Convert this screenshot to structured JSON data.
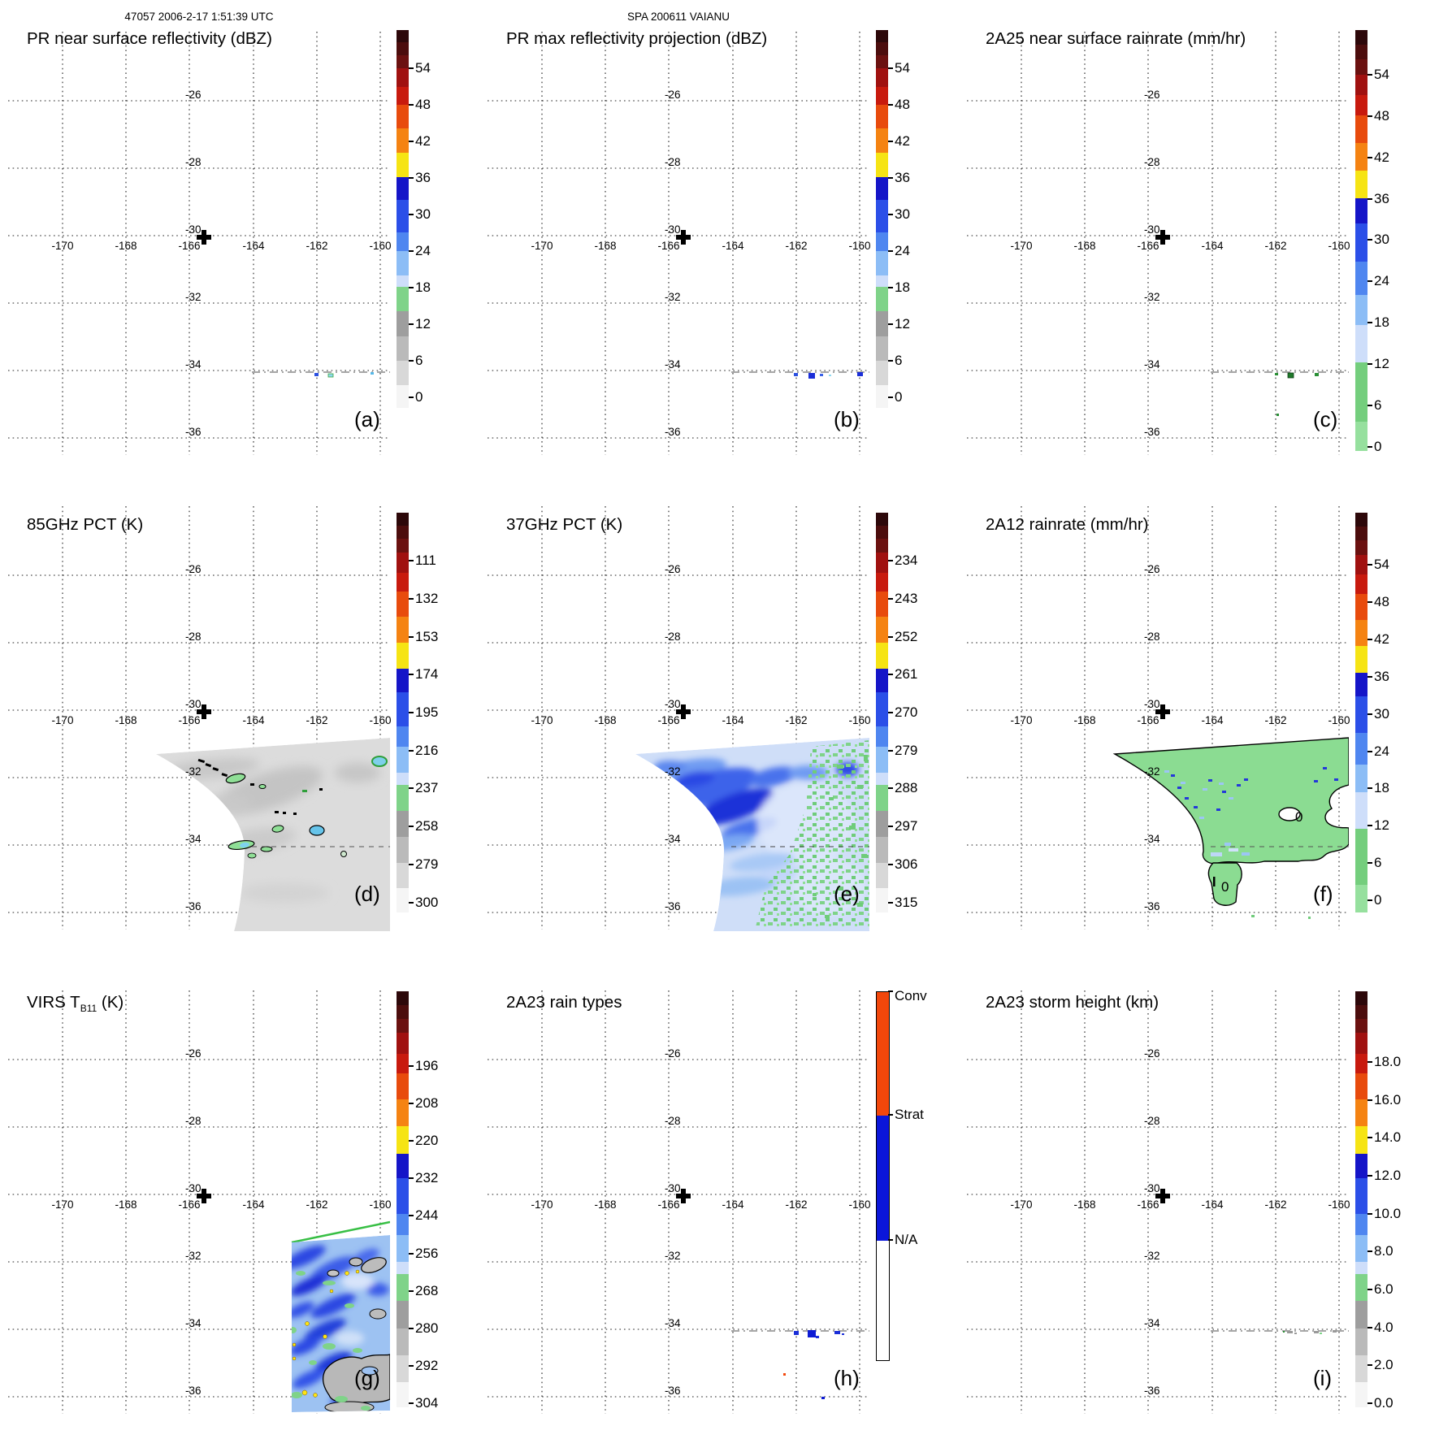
{
  "figure": {
    "header_left": "47057 2006-2-17 1:51:39 UTC",
    "header_center": "SPA 200611 VAIANU"
  },
  "axes": {
    "lon_ticks": [
      "-170",
      "-168",
      "-166",
      "-164",
      "-162",
      "-160"
    ],
    "lat_ticks": [
      "-26",
      "-28",
      "-30",
      "-32",
      "-34",
      "-36"
    ]
  },
  "scales": {
    "reflectivity": [
      [
        0,
        0.033,
        "#2d080a"
      ],
      [
        0.033,
        0.066,
        "#4c0d0d"
      ],
      [
        0.066,
        0.1,
        "#6b1110"
      ],
      [
        0.1,
        0.15,
        "#a01110"
      ],
      [
        0.15,
        0.197,
        "#c81a0e"
      ],
      [
        0.197,
        0.26,
        "#e84b0d"
      ],
      [
        0.26,
        0.325,
        "#f58312"
      ],
      [
        0.325,
        0.39,
        "#f6e414"
      ],
      [
        0.39,
        0.45,
        "#1515c8"
      ],
      [
        0.45,
        0.535,
        "#2b4fe8"
      ],
      [
        0.535,
        0.585,
        "#4f86f0"
      ],
      [
        0.585,
        0.65,
        "#8cbdf6"
      ],
      [
        0.65,
        0.68,
        "#cedefa"
      ],
      [
        0.68,
        0.745,
        "#7fd389"
      ],
      [
        0.745,
        0.81,
        "#9e9e9e"
      ],
      [
        0.81,
        0.875,
        "#bababa"
      ],
      [
        0.875,
        0.94,
        "#d8d8d8"
      ],
      [
        0.94,
        1,
        "#f5f5f5"
      ]
    ],
    "rainrate": [
      [
        0,
        0.035,
        "#2d080a"
      ],
      [
        0.035,
        0.07,
        "#4c0d0d"
      ],
      [
        0.07,
        0.106,
        "#6b1110"
      ],
      [
        0.106,
        0.155,
        "#a01110"
      ],
      [
        0.155,
        0.203,
        "#c81a0e"
      ],
      [
        0.203,
        0.268,
        "#e84b0d"
      ],
      [
        0.268,
        0.334,
        "#f58312"
      ],
      [
        0.334,
        0.4,
        "#f6e414"
      ],
      [
        0.4,
        0.46,
        "#1515c8"
      ],
      [
        0.46,
        0.55,
        "#2b4fe8"
      ],
      [
        0.55,
        0.63,
        "#4f86f0"
      ],
      [
        0.63,
        0.7,
        "#8cbdf6"
      ],
      [
        0.7,
        0.79,
        "#cedefa"
      ],
      [
        0.79,
        0.93,
        "#74ce7d"
      ],
      [
        0.93,
        1,
        "#96e09e"
      ]
    ],
    "raintype": [
      [
        0,
        0.335,
        "#f2470b"
      ],
      [
        0.335,
        0.675,
        "#0b16da"
      ],
      [
        0.675,
        1,
        "#ffffff"
      ]
    ]
  },
  "panels": [
    {
      "letter": "(a)",
      "title": "PR near surface reflectivity (dBZ)",
      "colorbar": {
        "scale": "reflectivity",
        "labels": [
          "54",
          "48",
          "42",
          "36",
          "30",
          "24",
          "18",
          "12",
          "6",
          "0"
        ],
        "first": 0.101,
        "last": 0.972
      }
    },
    {
      "letter": "(b)",
      "title": "PR max reflectivity projection (dBZ)",
      "colorbar": {
        "scale": "reflectivity",
        "labels": [
          "54",
          "48",
          "42",
          "36",
          "30",
          "24",
          "18",
          "12",
          "6",
          "0"
        ],
        "first": 0.101,
        "last": 0.972
      }
    },
    {
      "letter": "(c)",
      "title": "2A25 near surface rainrate (mm/hr)",
      "colorbar": {
        "scale": "rainrate",
        "labels": [
          "54",
          "48",
          "42",
          "36",
          "30",
          "24",
          "18",
          "12",
          "6",
          "0"
        ],
        "first": 0.106,
        "last": 0.99
      }
    },
    {
      "letter": "(d)",
      "title": "85GHz PCT (K)",
      "colorbar": {
        "scale": "reflectivity",
        "labels": [
          "111",
          "132",
          "153",
          "174",
          "195",
          "216",
          "237",
          "258",
          "279",
          "300"
        ],
        "first": 0.12,
        "last": 0.975
      }
    },
    {
      "letter": "(e)",
      "title": "37GHz PCT (K)",
      "colorbar": {
        "scale": "reflectivity",
        "labels": [
          "234",
          "243",
          "252",
          "261",
          "270",
          "279",
          "288",
          "297",
          "306",
          "315"
        ],
        "first": 0.12,
        "last": 0.975
      }
    },
    {
      "letter": "(f)",
      "title": "2A12 rainrate (mm/hr)",
      "colorbar": {
        "scale": "rainrate",
        "labels": [
          "54",
          "48",
          "42",
          "36",
          "30",
          "24",
          "18",
          "12",
          "6",
          "0"
        ],
        "first": 0.13,
        "last": 0.97
      },
      "annotations": [
        "0",
        "0"
      ]
    },
    {
      "letter": "(g)",
      "title": "VIRS T",
      "title_sub": "B11",
      "title_end": " (K)",
      "colorbar": {
        "scale": "reflectivity",
        "labels": [
          "196",
          "208",
          "220",
          "232",
          "244",
          "256",
          "268",
          "280",
          "292",
          "304"
        ],
        "first": 0.18,
        "last": 0.99
      }
    },
    {
      "letter": "(h)",
      "title": "2A23 rain types",
      "colorbar": {
        "scale": "raintype",
        "labels": [
          "Conv",
          "Strat",
          "N/A"
        ],
        "positions": [
          0,
          0.335,
          0.675
        ],
        "border": true
      }
    },
    {
      "letter": "(i)",
      "title": "2A23 storm height (km)",
      "colorbar": {
        "scale": "reflectivity",
        "labels": [
          "18.0",
          "16.0",
          "14.0",
          "12.0",
          "10.0",
          "8.0",
          "6.0",
          "4.0",
          "2.0",
          "0.0"
        ],
        "first": 0.17,
        "last": 0.99
      }
    }
  ],
  "chart_data": {
    "type": "heatmap",
    "subtype": "3x3 satellite swath map panels",
    "lon_ticks": [
      -170,
      -168,
      -166,
      -164,
      -162,
      -160
    ],
    "lat_ticks": [
      -26,
      -28,
      -30,
      -32,
      -34,
      -36
    ],
    "storm_center_marker": {
      "lon": -165.5,
      "lat": -30.1
    },
    "panel_titles": [
      "PR near surface reflectivity (dBZ)",
      "PR max reflectivity projection (dBZ)",
      "2A25 near surface rainrate (mm/hr)",
      "85GHz PCT (K)",
      "37GHz PCT (K)",
      "2A12 rainrate (mm/hr)",
      "VIRS TB11 (K)",
      "2A23 rain types",
      "2A23 storm height (km)"
    ],
    "colorbar_ranges": {
      "dbz": [
        0,
        6,
        12,
        18,
        24,
        30,
        36,
        42,
        48,
        54
      ],
      "pct85": [
        111,
        132,
        153,
        174,
        195,
        216,
        237,
        258,
        279,
        300
      ],
      "pct37": [
        234,
        243,
        252,
        261,
        270,
        279,
        288,
        297,
        306,
        315
      ],
      "virs": [
        196,
        208,
        220,
        232,
        244,
        256,
        268,
        280,
        292,
        304
      ],
      "rain_types": [
        "Conv",
        "Strat",
        "N/A"
      ],
      "storm_height_km": [
        18,
        16,
        14,
        12,
        10,
        8,
        6,
        4,
        2,
        0
      ]
    }
  }
}
